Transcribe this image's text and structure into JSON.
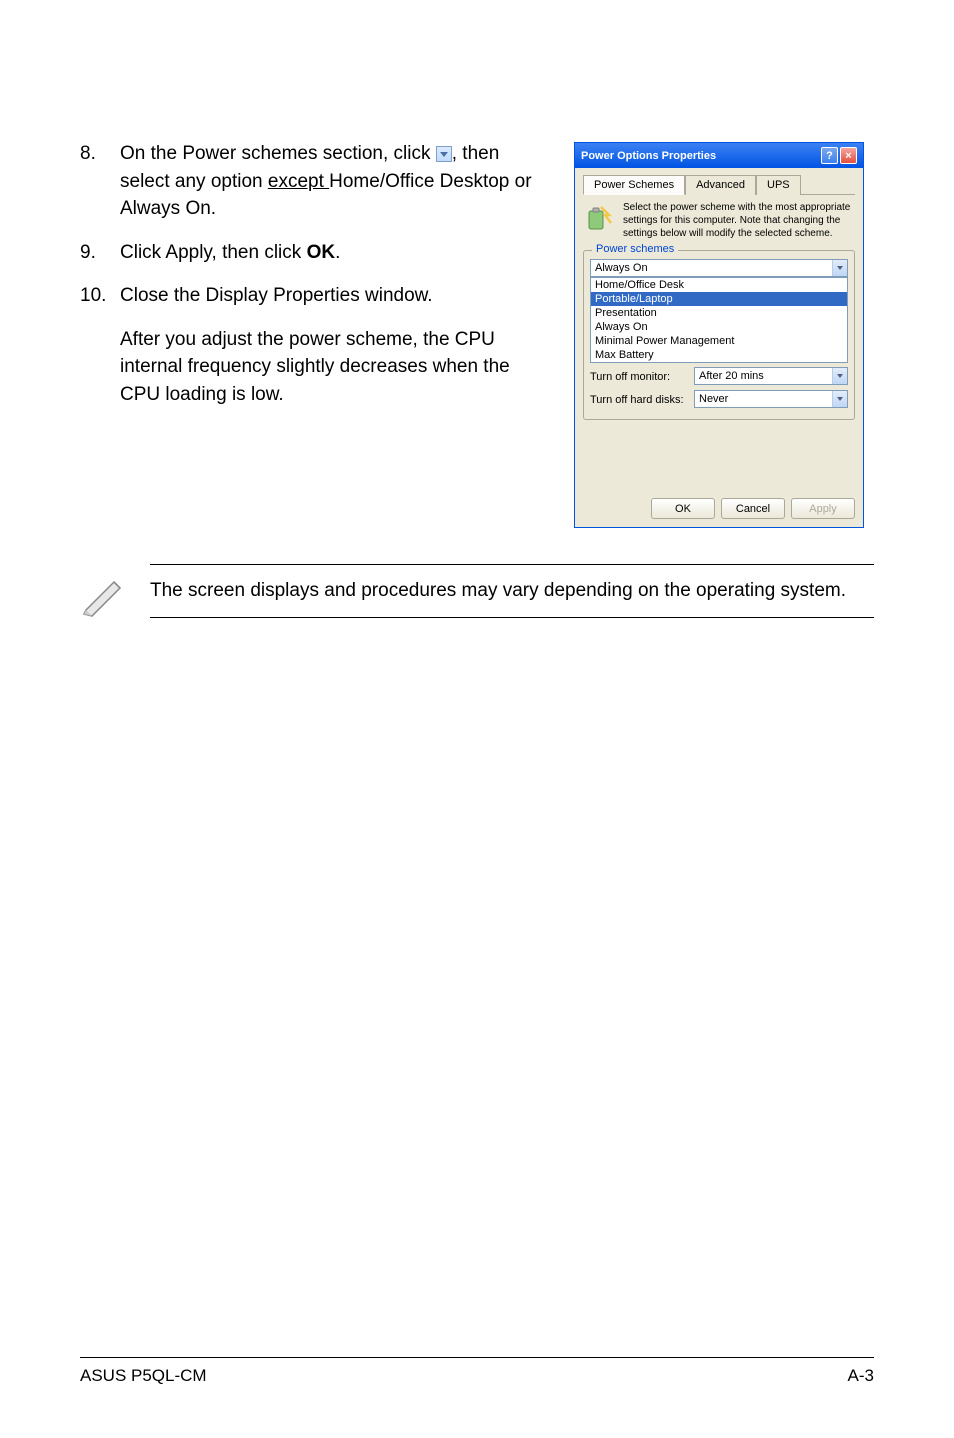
{
  "steps": [
    {
      "num": "8.",
      "parts": [
        {
          "t": "text",
          "v": "On the Power schemes section, click "
        },
        {
          "t": "dropdown-icon"
        },
        {
          "t": "text",
          "v": ", then select any option "
        },
        {
          "t": "underline",
          "v": "except "
        },
        {
          "t": "text",
          "v": "Home/Office Desktop or Always On."
        }
      ]
    },
    {
      "num": "9.",
      "parts": [
        {
          "t": "text",
          "v": "Click Apply, then click "
        },
        {
          "t": "bold",
          "v": "OK"
        },
        {
          "t": "text",
          "v": "."
        }
      ]
    },
    {
      "num": "10.",
      "parts": [
        {
          "t": "text",
          "v": "Close the Display Properties window."
        }
      ],
      "continuation": "After you adjust the power scheme, the CPU internal frequency slightly decreases when the CPU loading is low."
    }
  ],
  "dialog": {
    "title": "Power Options Properties",
    "tabs": [
      "Power Schemes",
      "Advanced",
      "UPS"
    ],
    "active_tab": 0,
    "intro": "Select the power scheme with the most appropriate settings for this computer. Note that changing the settings below will modify the selected scheme.",
    "fieldset_label": "Power schemes",
    "combo_value": "Always On",
    "list_items": [
      {
        "label": "Home/Office Desk",
        "selected": false
      },
      {
        "label": "Portable/Laptop",
        "selected": true
      },
      {
        "label": "Presentation",
        "selected": false
      },
      {
        "label": "Always On",
        "selected": false
      },
      {
        "label": "Minimal Power Management",
        "selected": false
      },
      {
        "label": "Max Battery",
        "selected": false
      }
    ],
    "settings": [
      {
        "label": "Turn off monitor:",
        "value": "After 20 mins"
      },
      {
        "label": "Turn off hard disks:",
        "value": "Never"
      }
    ],
    "buttons": [
      {
        "label": "OK",
        "disabled": false
      },
      {
        "label": "Cancel",
        "disabled": false
      },
      {
        "label": "Apply",
        "disabled": true
      }
    ]
  },
  "note": "The screen displays and procedures may vary depending on the operating system.",
  "footer": {
    "left": "ASUS P5QL-CM",
    "right": "A-3"
  },
  "colors": {
    "xp_blue": "#0054e3",
    "xp_bg": "#ece9d8",
    "highlight": "#316ac5",
    "link_blue": "#0046d5"
  }
}
